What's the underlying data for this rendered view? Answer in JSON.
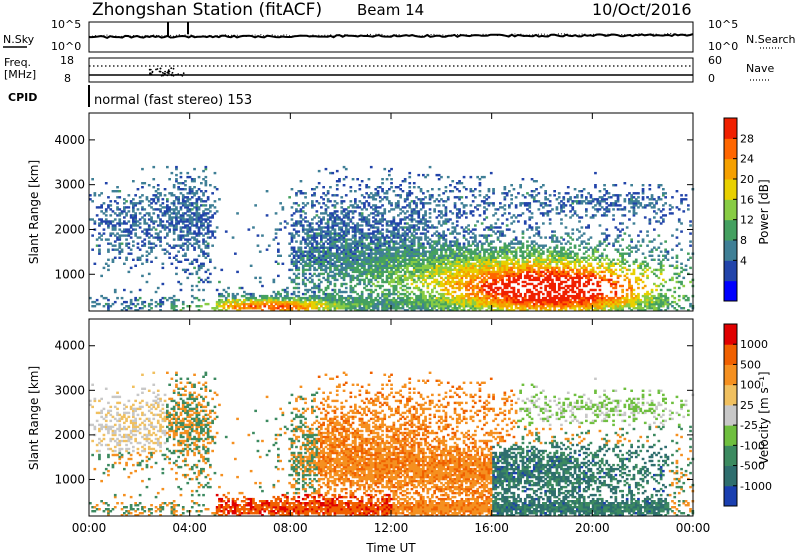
{
  "header": {
    "station": "Zhongshan Station (fitACF)",
    "beam": "Beam 14",
    "date": "10/Oct/2016"
  },
  "top_panels": {
    "nsky_label": "N.Sky",
    "nsky_ticks": [
      "10^5",
      "10^0"
    ],
    "nsearch_label": "N.Search",
    "nsearch_ticks": [
      "10^5",
      "10^0"
    ],
    "freq_label_1": "Freq.",
    "freq_label_2": "[MHz]",
    "freq_ticks": [
      "18",
      "8"
    ],
    "nave_label": "Nave",
    "nave_ticks": [
      "60",
      "0"
    ],
    "cpid_label": "CPID",
    "cpid_text": "normal (fast stereo) 153"
  },
  "chart_data": [
    {
      "type": "heatmap",
      "name": "power",
      "xlabel": "",
      "ylabel": "Slant Range [km]",
      "xlim": [
        0,
        24
      ],
      "ylim": [
        180,
        4600
      ],
      "yticks": [
        "4000",
        "3000",
        "2000",
        "1000"
      ],
      "colorbar_label": "Power [dB]",
      "colorbar_ticks": [
        "28",
        "24",
        "20",
        "16",
        "12",
        "8",
        "4"
      ],
      "colors": [
        "#0000ff",
        "#2244aa",
        "#3f7f96",
        "#44a060",
        "#88cc44",
        "#e8d000",
        "#f5a000",
        "#ff6600",
        "#f02000"
      ]
    },
    {
      "type": "heatmap",
      "name": "velocity",
      "xlabel": "Time UT",
      "ylabel": "Slant Range [km]",
      "xlim": [
        0,
        24
      ],
      "ylim": [
        180,
        4600
      ],
      "xticks": [
        "00:00",
        "04:00",
        "08:00",
        "12:00",
        "16:00",
        "20:00",
        "00:00"
      ],
      "yticks": [
        "4000",
        "3000",
        "2000",
        "1000"
      ],
      "colorbar_label": "Velocity [m s⁻¹]",
      "colorbar_ticks": [
        "1000",
        "500",
        "100",
        "25",
        "-25",
        "-100",
        "-500",
        "-1000"
      ],
      "colors": [
        "#1a3fb0",
        "#2f6e6e",
        "#3c8a60",
        "#6fbf3f",
        "#c8c8c8",
        "#f0c060",
        "#f59020",
        "#f06000",
        "#e00000"
      ]
    }
  ],
  "colors": {
    "frame": "#000000",
    "background": "#ffffff"
  }
}
